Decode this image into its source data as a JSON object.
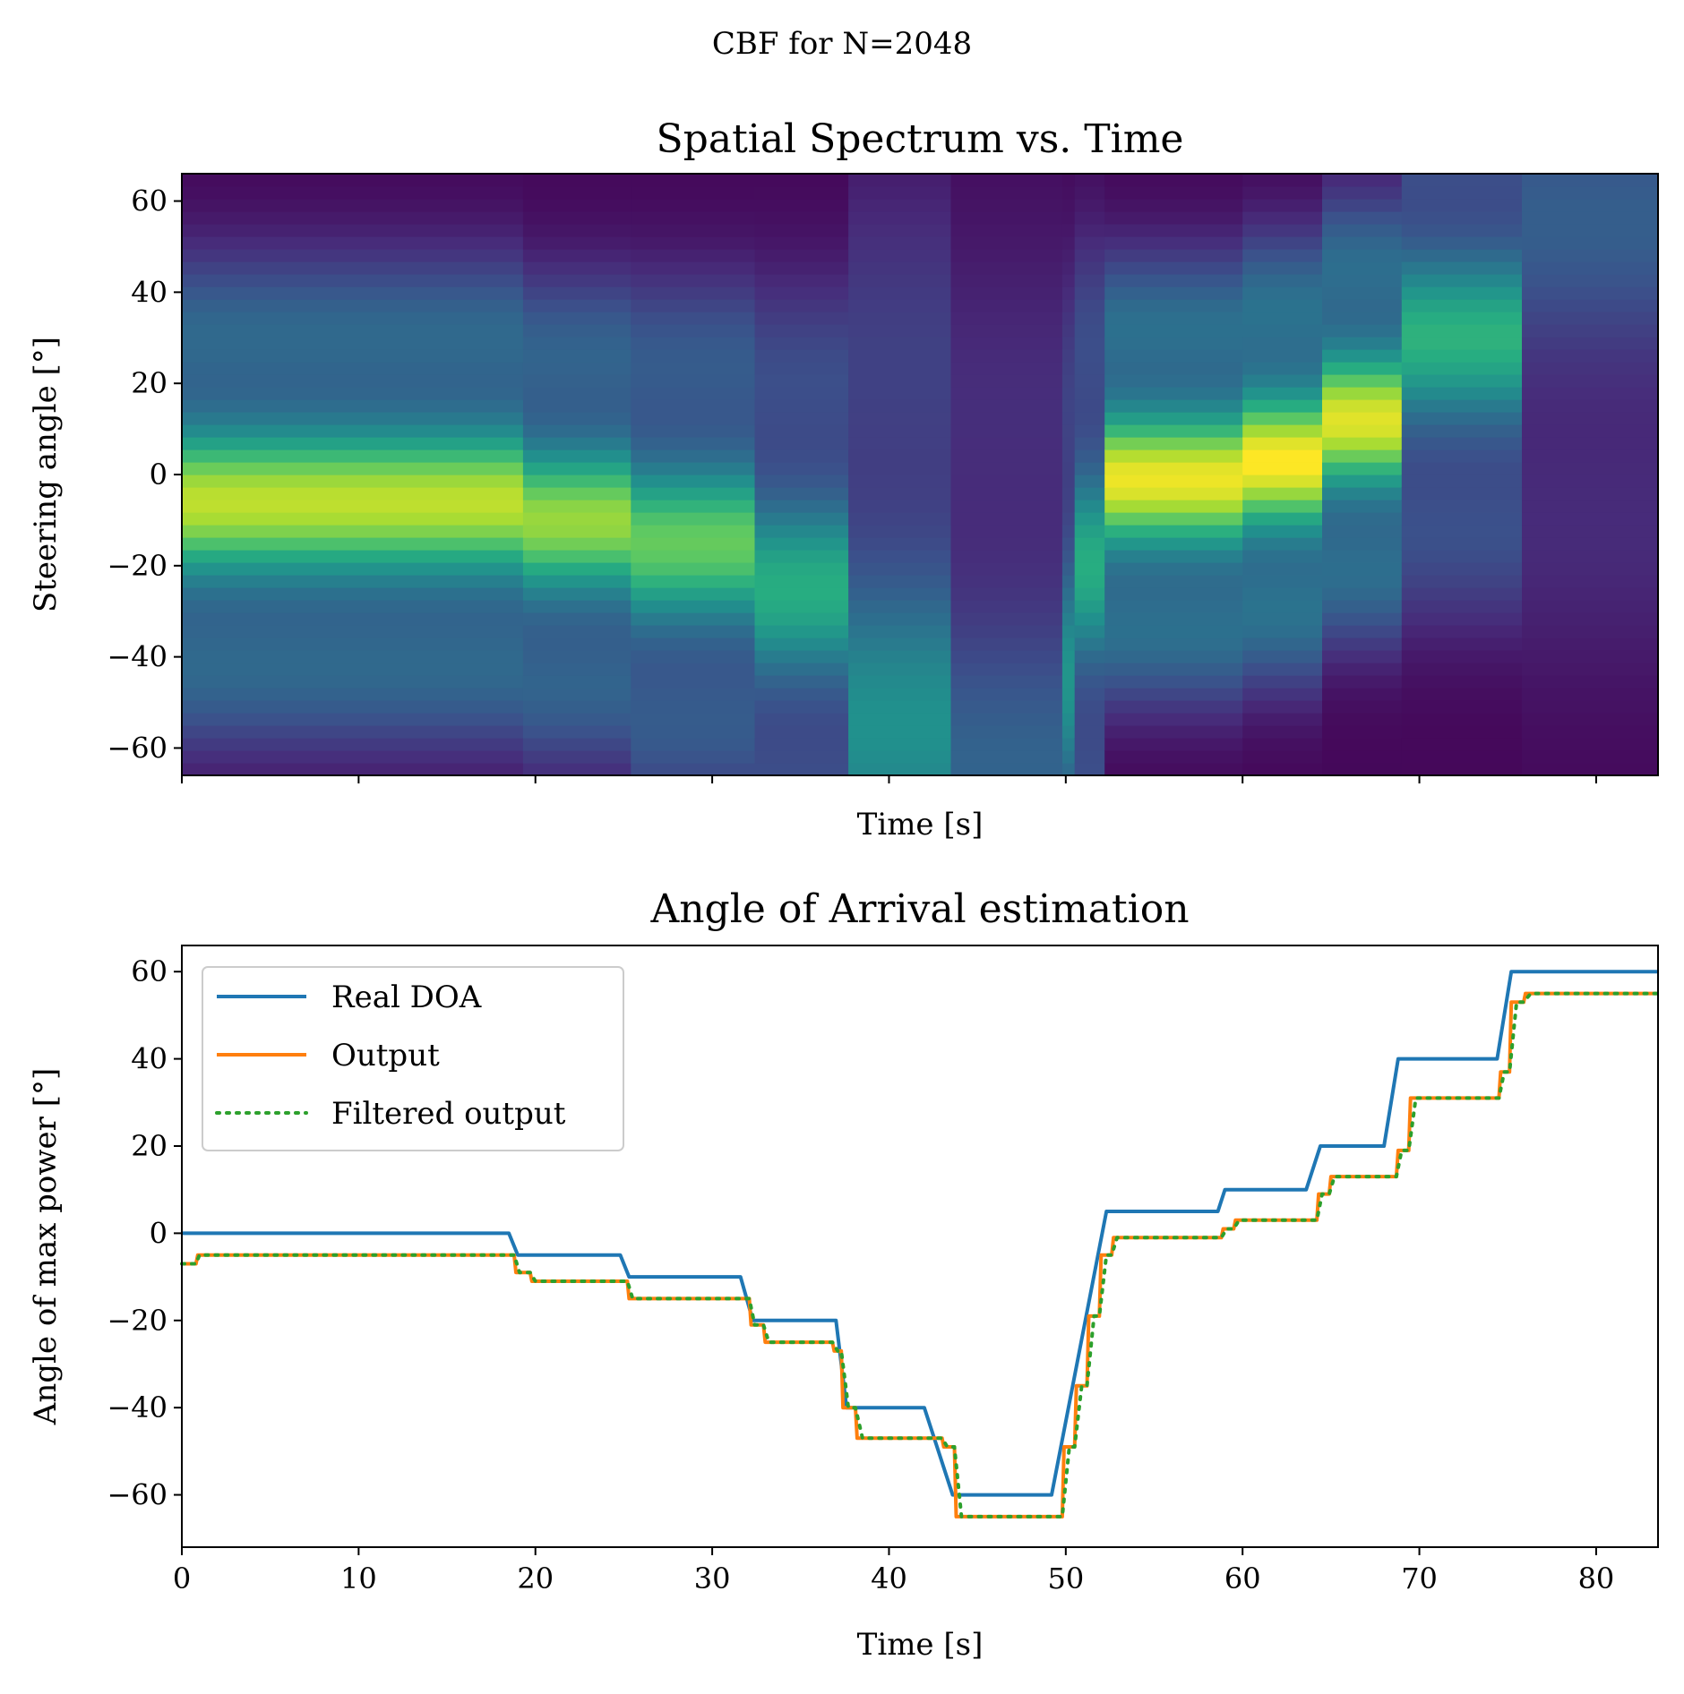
{
  "figure": {
    "suptitle": "CBF for N=2048"
  },
  "chart_data": [
    {
      "type": "heatmap",
      "title": "Spatial Spectrum vs. Time",
      "xlabel": "Time [s]",
      "ylabel": "Steering angle [°]",
      "xlim": [
        0,
        83.5
      ],
      "ylim": [
        -66,
        66
      ],
      "yticks": [
        -60,
        -40,
        -20,
        0,
        20,
        40,
        60
      ],
      "ytick_labels": [
        "−60",
        "−40",
        "−20",
        "0",
        "20",
        "40",
        "60"
      ],
      "xticks": [
        0,
        10,
        20,
        30,
        40,
        50,
        60,
        70,
        80
      ],
      "xtick_labels_shown": false,
      "colormap": "viridis",
      "segments": [
        {
          "t0": 0.0,
          "t1": 19.3,
          "peak": -6,
          "amp": 0.88,
          "width": 12
        },
        {
          "t0": 19.3,
          "t1": 25.4,
          "peak": -10,
          "amp": 0.82,
          "width": 12
        },
        {
          "t0": 25.4,
          "t1": 32.4,
          "peak": -15,
          "amp": 0.74,
          "width": 13
        },
        {
          "t0": 32.4,
          "t1": 37.7,
          "peak": -25,
          "amp": 0.6,
          "width": 15
        },
        {
          "t0": 37.7,
          "t1": 43.5,
          "peak": -55,
          "amp": 0.48,
          "width": 26
        },
        {
          "t0": 43.5,
          "t1": 49.8,
          "peak": -65,
          "amp": 0.3,
          "width": 26
        },
        {
          "t0": 49.8,
          "t1": 50.5,
          "peak": -45,
          "amp": 0.5,
          "width": 20
        },
        {
          "t0": 50.5,
          "t1": 52.2,
          "peak": -20,
          "amp": 0.6,
          "width": 16
        },
        {
          "t0": 52.2,
          "t1": 60.0,
          "peak": -1,
          "amp": 0.95,
          "width": 11
        },
        {
          "t0": 60.0,
          "t1": 64.5,
          "peak": 3,
          "amp": 0.98,
          "width": 11
        },
        {
          "t0": 64.5,
          "t1": 69.0,
          "peak": 12,
          "amp": 0.93,
          "width": 11
        },
        {
          "t0": 69.0,
          "t1": 75.8,
          "peak": 30,
          "amp": 0.62,
          "width": 14
        },
        {
          "t0": 75.8,
          "t1": 83.5,
          "peak": 56,
          "amp": 0.28,
          "width": 22
        }
      ]
    },
    {
      "type": "line",
      "title": "Angle of Arrival estimation",
      "xlabel": "Time [s]",
      "ylabel": "Angle of max power [°]",
      "xlim": [
        0,
        83.5
      ],
      "ylim": [
        -72,
        66
      ],
      "xticks": [
        0,
        10,
        20,
        30,
        40,
        50,
        60,
        70,
        80
      ],
      "xtick_labels": [
        "0",
        "10",
        "20",
        "30",
        "40",
        "50",
        "60",
        "70",
        "80"
      ],
      "yticks": [
        -60,
        -40,
        -20,
        0,
        20,
        40,
        60
      ],
      "ytick_labels": [
        "−60",
        "−40",
        "−20",
        "0",
        "20",
        "40",
        "60"
      ],
      "legend_position": "upper-left",
      "series": [
        {
          "name": "Real DOA",
          "color": "#1f77b4",
          "style": "solid",
          "points": [
            [
              0,
              0
            ],
            [
              18.5,
              0
            ],
            [
              19.0,
              -5
            ],
            [
              24.8,
              -5
            ],
            [
              25.3,
              -10
            ],
            [
              31.6,
              -10
            ],
            [
              32.3,
              -20
            ],
            [
              37.0,
              -20
            ],
            [
              37.6,
              -40
            ],
            [
              42.0,
              -40
            ],
            [
              43.6,
              -60
            ],
            [
              49.2,
              -60
            ],
            [
              52.3,
              5
            ],
            [
              58.6,
              5
            ],
            [
              59.0,
              10
            ],
            [
              63.6,
              10
            ],
            [
              64.4,
              20
            ],
            [
              68.0,
              20
            ],
            [
              68.8,
              40
            ],
            [
              74.4,
              40
            ],
            [
              75.2,
              60
            ],
            [
              83.5,
              60
            ]
          ]
        },
        {
          "name": "Output",
          "color": "#ff7f0e",
          "style": "solid",
          "points": [
            [
              0,
              -7
            ],
            [
              0.8,
              -7
            ],
            [
              0.9,
              -5
            ],
            [
              18.8,
              -5
            ],
            [
              18.9,
              -9
            ],
            [
              19.7,
              -9
            ],
            [
              19.8,
              -11
            ],
            [
              25.2,
              -11
            ],
            [
              25.3,
              -15
            ],
            [
              32.1,
              -15
            ],
            [
              32.2,
              -21
            ],
            [
              32.9,
              -21
            ],
            [
              33.0,
              -25
            ],
            [
              36.8,
              -25
            ],
            [
              36.9,
              -27
            ],
            [
              37.3,
              -27
            ],
            [
              37.4,
              -40
            ],
            [
              38.1,
              -40
            ],
            [
              38.2,
              -47
            ],
            [
              43.0,
              -47
            ],
            [
              43.1,
              -49
            ],
            [
              43.7,
              -49
            ],
            [
              43.8,
              -65
            ],
            [
              49.8,
              -65
            ],
            [
              49.9,
              -49
            ],
            [
              50.5,
              -49
            ],
            [
              50.6,
              -35
            ],
            [
              51.2,
              -35
            ],
            [
              51.3,
              -19
            ],
            [
              51.9,
              -19
            ],
            [
              52.0,
              -5
            ],
            [
              52.6,
              -5
            ],
            [
              52.7,
              -1
            ],
            [
              58.8,
              -1
            ],
            [
              58.9,
              1
            ],
            [
              59.5,
              1
            ],
            [
              59.6,
              3
            ],
            [
              64.2,
              3
            ],
            [
              64.3,
              9
            ],
            [
              64.9,
              9
            ],
            [
              65.0,
              13
            ],
            [
              68.7,
              13
            ],
            [
              68.8,
              19
            ],
            [
              69.4,
              19
            ],
            [
              69.5,
              31
            ],
            [
              74.5,
              31
            ],
            [
              74.6,
              37
            ],
            [
              75.1,
              37
            ],
            [
              75.2,
              53
            ],
            [
              75.9,
              53
            ],
            [
              76.0,
              55
            ],
            [
              83.5,
              55
            ]
          ]
        },
        {
          "name": "Filtered output",
          "color": "#2ca02c",
          "style": "dotted",
          "points": [
            [
              0,
              -7
            ],
            [
              0.8,
              -7
            ],
            [
              1.0,
              -5
            ],
            [
              18.8,
              -5
            ],
            [
              19.1,
              -9
            ],
            [
              19.7,
              -9
            ],
            [
              20.0,
              -11
            ],
            [
              25.2,
              -11
            ],
            [
              25.5,
              -15
            ],
            [
              32.1,
              -15
            ],
            [
              32.4,
              -21
            ],
            [
              32.9,
              -21
            ],
            [
              33.2,
              -25
            ],
            [
              36.8,
              -25
            ],
            [
              37.1,
              -27
            ],
            [
              37.3,
              -27
            ],
            [
              37.7,
              -40
            ],
            [
              38.1,
              -40
            ],
            [
              38.5,
              -47
            ],
            [
              43.0,
              -47
            ],
            [
              43.3,
              -49
            ],
            [
              43.7,
              -49
            ],
            [
              44.1,
              -65
            ],
            [
              49.8,
              -65
            ],
            [
              50.2,
              -49
            ],
            [
              50.5,
              -49
            ],
            [
              50.9,
              -35
            ],
            [
              51.2,
              -35
            ],
            [
              51.6,
              -19
            ],
            [
              51.9,
              -19
            ],
            [
              52.3,
              -5
            ],
            [
              52.6,
              -5
            ],
            [
              52.9,
              -1
            ],
            [
              58.8,
              -1
            ],
            [
              59.1,
              1
            ],
            [
              59.5,
              1
            ],
            [
              59.8,
              3
            ],
            [
              64.2,
              3
            ],
            [
              64.5,
              9
            ],
            [
              64.9,
              9
            ],
            [
              65.2,
              13
            ],
            [
              68.7,
              13
            ],
            [
              69.0,
              19
            ],
            [
              69.4,
              19
            ],
            [
              69.8,
              31
            ],
            [
              74.5,
              31
            ],
            [
              74.8,
              37
            ],
            [
              75.1,
              37
            ],
            [
              75.5,
              53
            ],
            [
              75.9,
              53
            ],
            [
              76.3,
              55
            ],
            [
              83.5,
              55
            ]
          ]
        }
      ]
    }
  ]
}
